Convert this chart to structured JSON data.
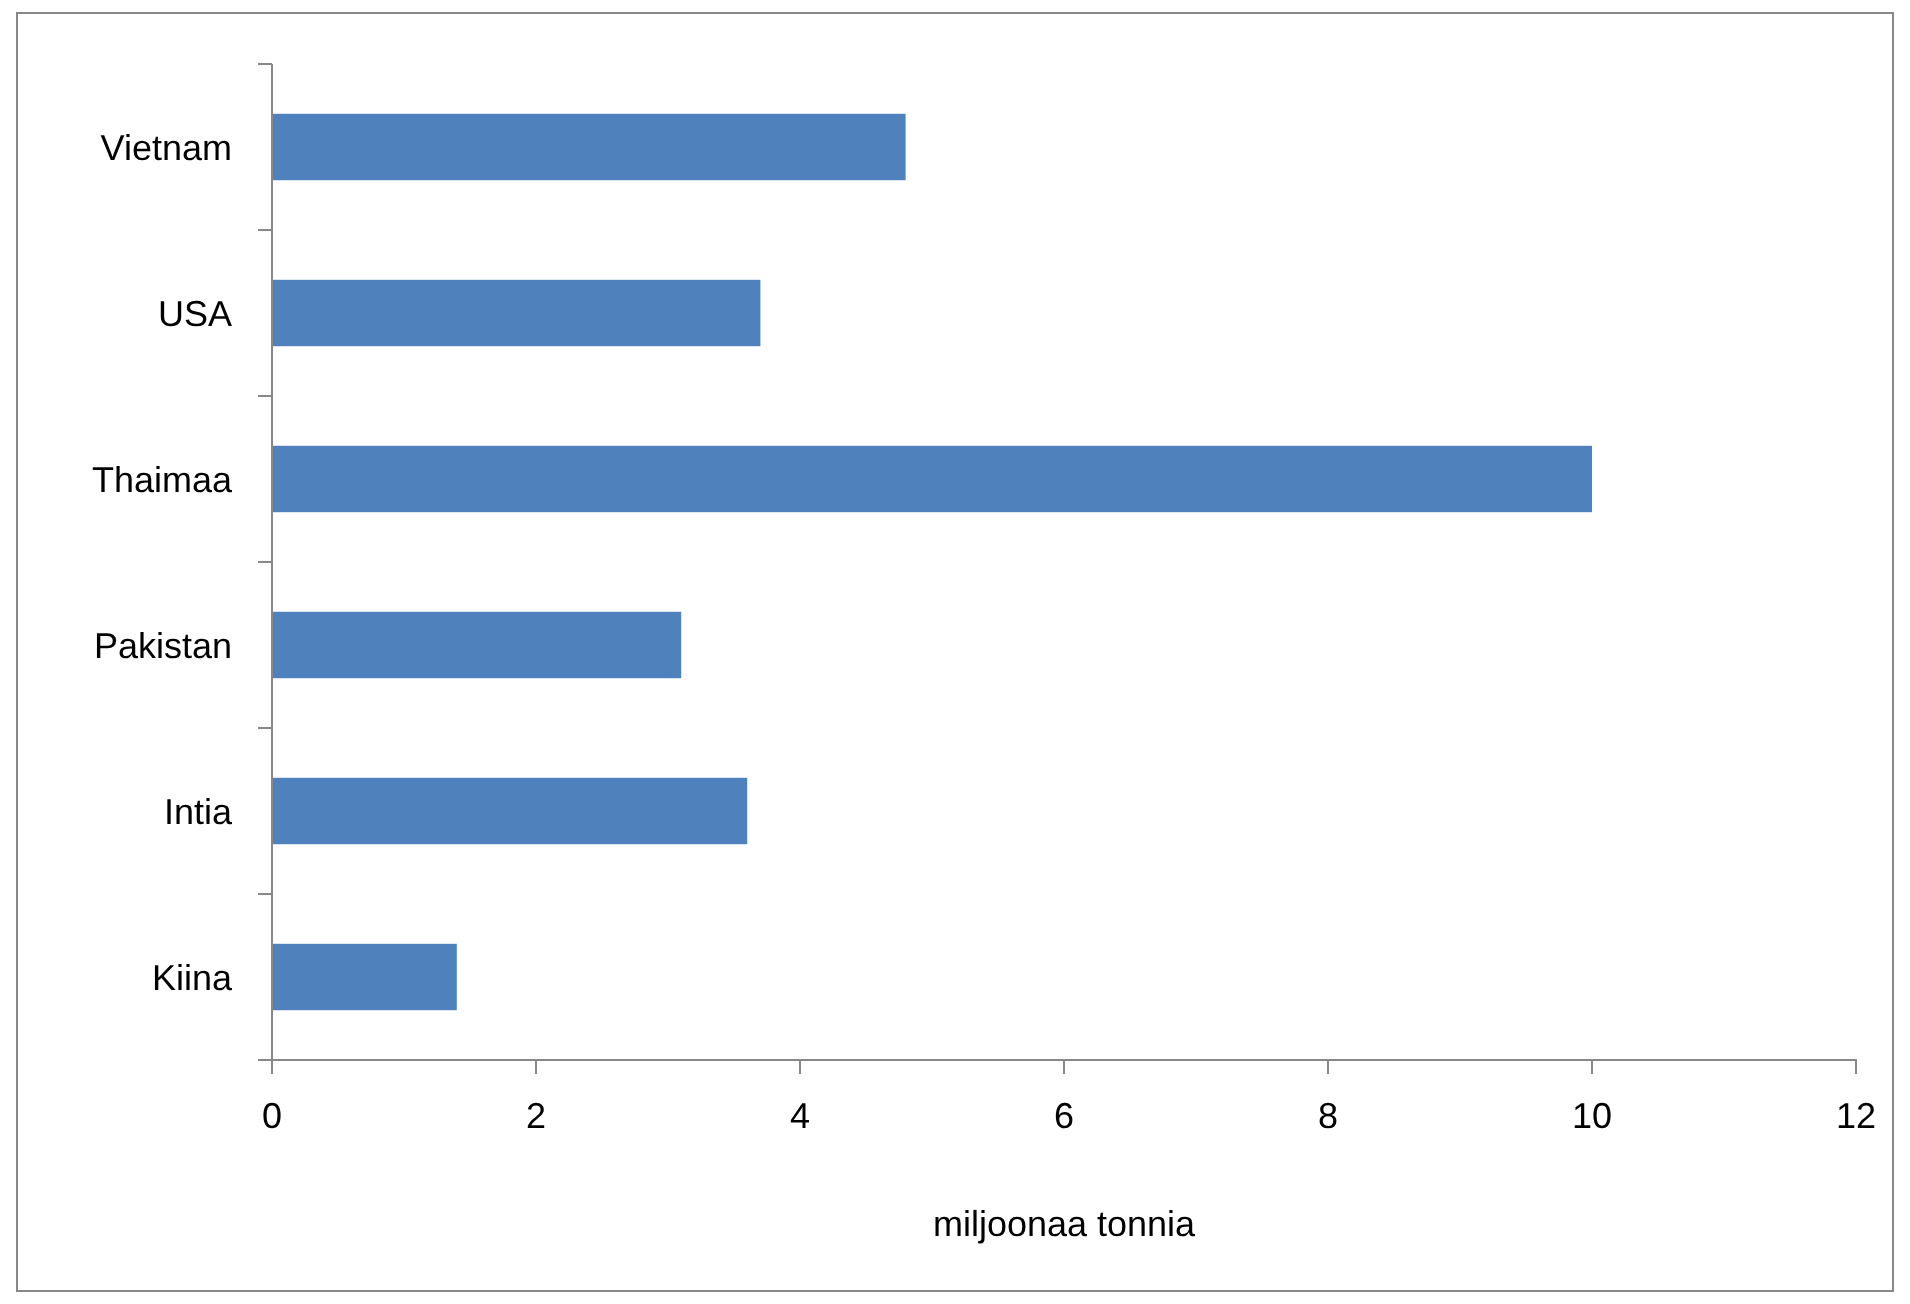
{
  "chart_data": {
    "type": "bar",
    "orientation": "horizontal",
    "xlabel": "miljoonaa tonnia",
    "categories": [
      "Vietnam",
      "USA",
      "Thaimaa",
      "Pakistan",
      "Intia",
      "Kiina"
    ],
    "values": [
      4.8,
      3.7,
      10.0,
      3.1,
      3.6,
      1.4
    ],
    "color": "#4f81bd",
    "xlim": [
      0,
      12
    ],
    "xticks": [
      0,
      2,
      4,
      6,
      8,
      10,
      12
    ]
  }
}
